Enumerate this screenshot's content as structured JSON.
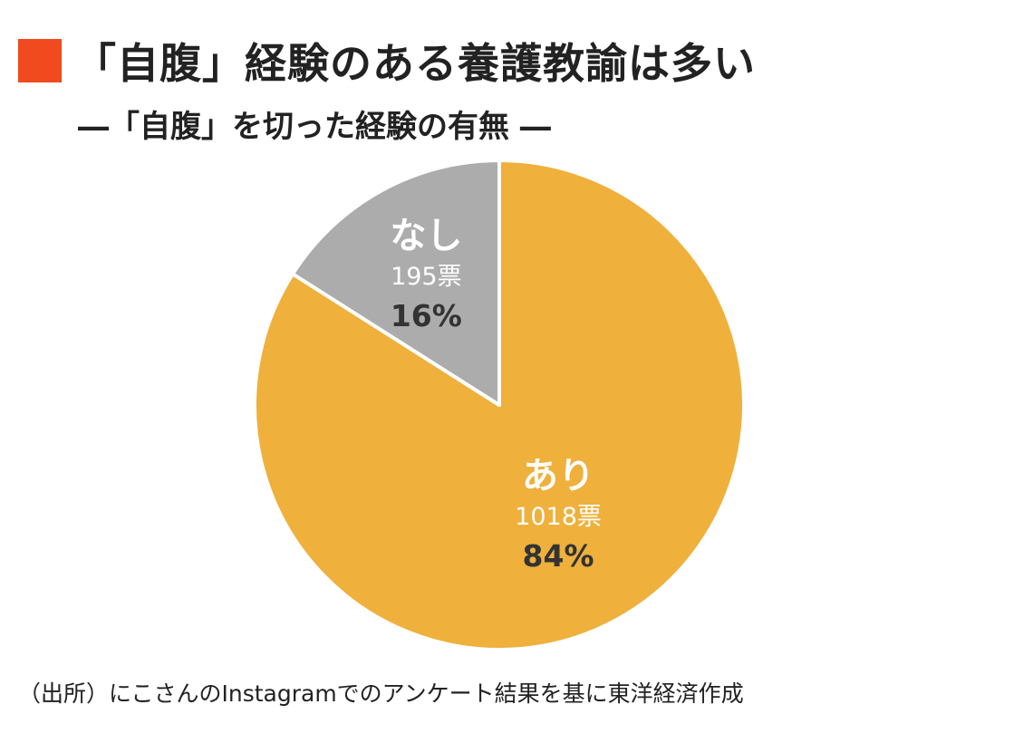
{
  "title": "「自腹」経験のある養護教諭は多い",
  "subtitle": "―「自腹」を切った経験の有無 ―",
  "source": "（出所）にこさんのInstagramでのアンケート結果を基に東洋経済作成",
  "colors": {
    "title_marker": "#f04a1e",
    "ari": "#efb03c",
    "nashi": "#acacac",
    "label_light": "#ffffff",
    "label_dark": "#333333"
  },
  "chart_data": {
    "type": "pie",
    "start": "12 o'clock",
    "direction": "clockwise",
    "slices": [
      {
        "name": "あり",
        "votes": "1018票",
        "percent": "84%",
        "value": 84
      },
      {
        "name": "なし",
        "votes": "195票",
        "percent": "16%",
        "value": 16
      }
    ]
  }
}
